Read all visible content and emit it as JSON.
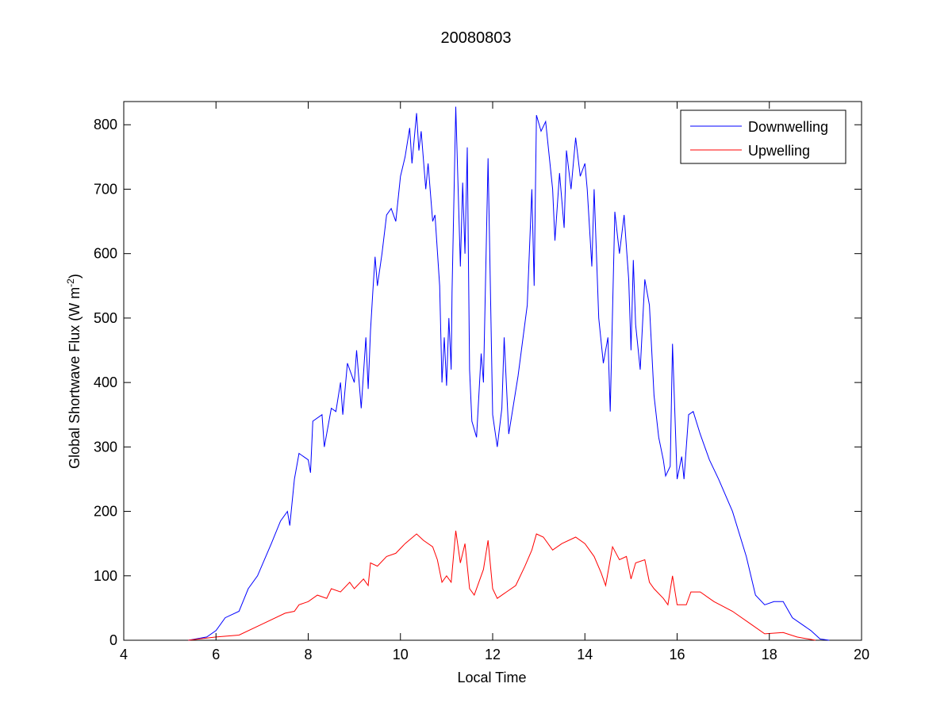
{
  "chart_data": {
    "type": "line",
    "title": "20080803",
    "xlabel": "Local Time",
    "ylabel": "Global Shortwave Flux (W m",
    "ylabel_sup": "-2",
    "ylabel_close": ")",
    "xlim": [
      4,
      20
    ],
    "ylim": [
      0,
      836
    ],
    "xticks": [
      4,
      6,
      8,
      10,
      12,
      14,
      16,
      18,
      20
    ],
    "yticks": [
      0,
      100,
      200,
      300,
      400,
      500,
      600,
      700,
      800
    ],
    "xtick_labels": [
      "4",
      "6",
      "8",
      "10",
      "12",
      "14",
      "16",
      "18",
      "20"
    ],
    "ytick_labels": [
      "0",
      "100",
      "200",
      "300",
      "400",
      "500",
      "600",
      "700",
      "800"
    ],
    "grid": false,
    "legend_position": "top-right",
    "series": [
      {
        "name": "Downwelling",
        "color": "#0000ff",
        "points": [
          [
            5.4,
            0
          ],
          [
            5.8,
            5
          ],
          [
            6.0,
            15
          ],
          [
            6.2,
            35
          ],
          [
            6.5,
            45
          ],
          [
            6.7,
            80
          ],
          [
            6.9,
            100
          ],
          [
            7.2,
            150
          ],
          [
            7.4,
            185
          ],
          [
            7.55,
            200
          ],
          [
            7.6,
            178
          ],
          [
            7.7,
            250
          ],
          [
            7.8,
            290
          ],
          [
            8.0,
            280
          ],
          [
            8.05,
            260
          ],
          [
            8.1,
            340
          ],
          [
            8.3,
            350
          ],
          [
            8.35,
            300
          ],
          [
            8.5,
            360
          ],
          [
            8.6,
            355
          ],
          [
            8.7,
            400
          ],
          [
            8.75,
            350
          ],
          [
            8.85,
            430
          ],
          [
            9.0,
            400
          ],
          [
            9.05,
            450
          ],
          [
            9.15,
            360
          ],
          [
            9.25,
            470
          ],
          [
            9.3,
            390
          ],
          [
            9.35,
            480
          ],
          [
            9.4,
            540
          ],
          [
            9.45,
            595
          ],
          [
            9.5,
            550
          ],
          [
            9.6,
            600
          ],
          [
            9.7,
            660
          ],
          [
            9.8,
            670
          ],
          [
            9.9,
            650
          ],
          [
            10.0,
            720
          ],
          [
            10.1,
            750
          ],
          [
            10.2,
            795
          ],
          [
            10.25,
            740
          ],
          [
            10.35,
            818
          ],
          [
            10.4,
            760
          ],
          [
            10.45,
            790
          ],
          [
            10.55,
            700
          ],
          [
            10.6,
            740
          ],
          [
            10.7,
            650
          ],
          [
            10.75,
            660
          ],
          [
            10.85,
            550
          ],
          [
            10.9,
            400
          ],
          [
            10.95,
            470
          ],
          [
            11.0,
            395
          ],
          [
            11.05,
            500
          ],
          [
            11.1,
            420
          ],
          [
            11.12,
            540
          ],
          [
            11.2,
            828
          ],
          [
            11.3,
            580
          ],
          [
            11.35,
            710
          ],
          [
            11.4,
            600
          ],
          [
            11.45,
            765
          ],
          [
            11.5,
            420
          ],
          [
            11.55,
            340
          ],
          [
            11.65,
            315
          ],
          [
            11.75,
            445
          ],
          [
            11.8,
            400
          ],
          [
            11.9,
            748
          ],
          [
            12.0,
            350
          ],
          [
            12.1,
            300
          ],
          [
            12.2,
            360
          ],
          [
            12.25,
            470
          ],
          [
            12.35,
            320
          ],
          [
            12.55,
            410
          ],
          [
            12.75,
            520
          ],
          [
            12.85,
            700
          ],
          [
            12.9,
            550
          ],
          [
            12.95,
            815
          ],
          [
            13.05,
            790
          ],
          [
            13.15,
            805
          ],
          [
            13.3,
            700
          ],
          [
            13.35,
            620
          ],
          [
            13.45,
            725
          ],
          [
            13.55,
            640
          ],
          [
            13.6,
            760
          ],
          [
            13.7,
            700
          ],
          [
            13.8,
            780
          ],
          [
            13.9,
            720
          ],
          [
            14.0,
            740
          ],
          [
            14.05,
            700
          ],
          [
            14.15,
            580
          ],
          [
            14.2,
            700
          ],
          [
            14.3,
            500
          ],
          [
            14.4,
            430
          ],
          [
            14.5,
            470
          ],
          [
            14.55,
            355
          ],
          [
            14.65,
            665
          ],
          [
            14.75,
            600
          ],
          [
            14.85,
            660
          ],
          [
            14.95,
            560
          ],
          [
            15.0,
            450
          ],
          [
            15.05,
            590
          ],
          [
            15.1,
            490
          ],
          [
            15.2,
            420
          ],
          [
            15.3,
            560
          ],
          [
            15.4,
            520
          ],
          [
            15.5,
            380
          ],
          [
            15.6,
            315
          ],
          [
            15.7,
            280
          ],
          [
            15.75,
            255
          ],
          [
            15.85,
            270
          ],
          [
            15.9,
            460
          ],
          [
            16.0,
            250
          ],
          [
            16.1,
            285
          ],
          [
            16.15,
            250
          ],
          [
            16.25,
            350
          ],
          [
            16.35,
            355
          ],
          [
            16.5,
            320
          ],
          [
            16.7,
            280
          ],
          [
            16.9,
            250
          ],
          [
            17.2,
            200
          ],
          [
            17.5,
            130
          ],
          [
            17.7,
            70
          ],
          [
            17.9,
            55
          ],
          [
            18.1,
            60
          ],
          [
            18.3,
            60
          ],
          [
            18.5,
            35
          ],
          [
            18.7,
            25
          ],
          [
            18.9,
            15
          ],
          [
            19.1,
            2
          ],
          [
            19.3,
            0
          ]
        ]
      },
      {
        "name": "Upwelling",
        "color": "#ff0000",
        "points": [
          [
            5.4,
            0
          ],
          [
            6.0,
            5
          ],
          [
            6.5,
            8
          ],
          [
            7.0,
            25
          ],
          [
            7.5,
            42
          ],
          [
            7.7,
            45
          ],
          [
            7.8,
            55
          ],
          [
            8.0,
            60
          ],
          [
            8.2,
            70
          ],
          [
            8.4,
            65
          ],
          [
            8.5,
            80
          ],
          [
            8.7,
            75
          ],
          [
            8.9,
            90
          ],
          [
            9.0,
            80
          ],
          [
            9.2,
            95
          ],
          [
            9.3,
            85
          ],
          [
            9.35,
            120
          ],
          [
            9.5,
            115
          ],
          [
            9.7,
            130
          ],
          [
            9.9,
            135
          ],
          [
            10.1,
            150
          ],
          [
            10.35,
            165
          ],
          [
            10.5,
            155
          ],
          [
            10.7,
            145
          ],
          [
            10.8,
            125
          ],
          [
            10.9,
            90
          ],
          [
            11.0,
            100
          ],
          [
            11.1,
            90
          ],
          [
            11.2,
            170
          ],
          [
            11.3,
            120
          ],
          [
            11.4,
            150
          ],
          [
            11.5,
            80
          ],
          [
            11.6,
            70
          ],
          [
            11.8,
            110
          ],
          [
            11.9,
            155
          ],
          [
            12.0,
            80
          ],
          [
            12.1,
            65
          ],
          [
            12.3,
            75
          ],
          [
            12.5,
            85
          ],
          [
            12.7,
            115
          ],
          [
            12.85,
            140
          ],
          [
            12.95,
            165
          ],
          [
            13.1,
            160
          ],
          [
            13.3,
            140
          ],
          [
            13.5,
            150
          ],
          [
            13.8,
            160
          ],
          [
            14.0,
            150
          ],
          [
            14.2,
            130
          ],
          [
            14.35,
            105
          ],
          [
            14.45,
            85
          ],
          [
            14.6,
            145
          ],
          [
            14.75,
            125
          ],
          [
            14.9,
            130
          ],
          [
            15.0,
            95
          ],
          [
            15.1,
            120
          ],
          [
            15.3,
            125
          ],
          [
            15.4,
            90
          ],
          [
            15.5,
            80
          ],
          [
            15.7,
            65
          ],
          [
            15.8,
            55
          ],
          [
            15.9,
            100
          ],
          [
            16.0,
            55
          ],
          [
            16.2,
            55
          ],
          [
            16.3,
            75
          ],
          [
            16.5,
            75
          ],
          [
            16.8,
            60
          ],
          [
            17.2,
            45
          ],
          [
            17.6,
            25
          ],
          [
            17.9,
            10
          ],
          [
            18.3,
            12
          ],
          [
            18.6,
            5
          ],
          [
            19.0,
            0
          ]
        ]
      }
    ]
  }
}
